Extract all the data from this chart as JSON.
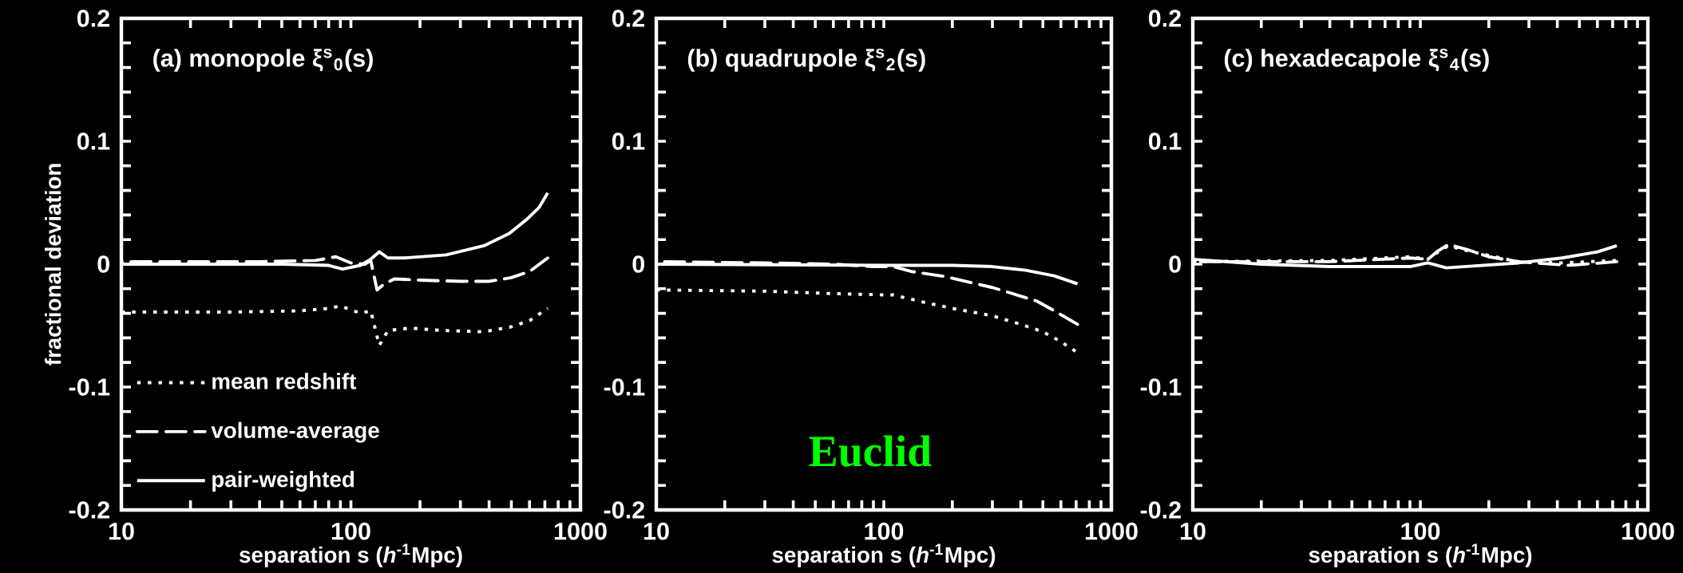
{
  "chart_data": [
    {
      "type": "line",
      "title": "(a) monopole ξ$^{s}$$_{0}$(s)",
      "xlabel": "separation s (*h*$^{-1}$Mpc)",
      "ylabel": "fractional deviation",
      "log": "x",
      "xlim": [
        10,
        1000
      ],
      "ylim": [
        -0.2,
        0.2
      ],
      "xticks": [
        10,
        100,
        1000
      ],
      "yticks": [
        -0.2,
        -0.1,
        0,
        0.1,
        0.2
      ],
      "legend": "bottom left",
      "series": [
        {
          "name": "mean redshift",
          "color": "#ffffff",
          "line_style": "dotted",
          "x": [
            10,
            30,
            60,
            80,
            90,
            110,
            122,
            133,
            145,
            180,
            250,
            380,
            500,
            600,
            720
          ],
          "values": [
            -0.039,
            -0.039,
            -0.038,
            -0.036,
            -0.034,
            -0.04,
            -0.038,
            -0.066,
            -0.054,
            -0.052,
            -0.054,
            -0.055,
            -0.051,
            -0.046,
            -0.036
          ]
        },
        {
          "name": "volume-average",
          "color": "#ffffff",
          "line_style": "dashed",
          "x": [
            10,
            40,
            70,
            86,
            100,
            115,
            122,
            130,
            140,
            155,
            200,
            300,
            400,
            500,
            600,
            720
          ],
          "values": [
            0.002,
            0.002,
            0.003,
            0.006,
            0.001,
            0.0,
            0.003,
            -0.021,
            -0.016,
            -0.012,
            -0.013,
            -0.014,
            -0.014,
            -0.011,
            -0.006,
            0.005
          ]
        },
        {
          "name": "pair-weighted",
          "color": "#ffffff",
          "line_style": "solid",
          "x": [
            10,
            50,
            80,
            92,
            110,
            122,
            133,
            145,
            170,
            260,
            380,
            490,
            580,
            660,
            720
          ],
          "values": [
            0.0,
            0.0,
            -0.001,
            -0.004,
            -0.001,
            0.004,
            0.01,
            0.005,
            0.005,
            0.0075,
            0.015,
            0.025,
            0.036,
            0.046,
            0.058
          ]
        }
      ]
    },
    {
      "type": "line",
      "title": "(b) quadrupole ξ$^{s}$$_{2}$(s)",
      "xlabel": "separation s (*h*$^{-1}$Mpc)",
      "log": "x",
      "xlim": [
        10,
        1000
      ],
      "ylim": [
        -0.2,
        0.2
      ],
      "xticks": [
        10,
        100,
        1000
      ],
      "yticks": [
        -0.2,
        -0.1,
        0,
        0.1,
        0.2
      ],
      "annotations": [
        "Euclid"
      ],
      "series": [
        {
          "color": "#ffffff",
          "line_style": "dotted",
          "x": [
            10,
            30,
            60,
            100,
            110,
            150,
            200,
            300,
            400,
            500,
            600,
            710
          ],
          "values": [
            -0.021,
            -0.022,
            -0.024,
            -0.025,
            -0.025,
            -0.031,
            -0.036,
            -0.042,
            -0.049,
            -0.055,
            -0.063,
            -0.072
          ]
        },
        {
          "color": "#ffffff",
          "line_style": "dashed",
          "x": [
            10,
            30,
            60,
            90,
            110,
            132,
            185,
            300,
            470,
            550,
            710
          ],
          "values": [
            0.002,
            0.001,
            0.0,
            -0.002,
            -0.002,
            -0.006,
            -0.01,
            -0.019,
            -0.03,
            -0.037,
            -0.049
          ]
        },
        {
          "color": "#ffffff",
          "line_style": "solid",
          "x": [
            10,
            100,
            200,
            300,
            420,
            560,
            710
          ],
          "values": [
            0.0,
            -0.001,
            -0.001,
            -0.002,
            -0.005,
            -0.0095,
            -0.016
          ]
        }
      ]
    },
    {
      "type": "line",
      "title": "(c) hexadecapole ξ$^{s}$$_{4}$(s)",
      "xlabel": "separation s (*h*$^{-1}$Mpc)",
      "log": "x",
      "xlim": [
        10,
        1000
      ],
      "ylim": [
        -0.2,
        0.2
      ],
      "xticks": [
        10,
        100,
        1000
      ],
      "yticks": [
        -0.2,
        -0.1,
        0,
        0.1,
        0.2
      ],
      "series": [
        {
          "color": "#ffffff",
          "line_style": "dotted",
          "x": [
            10,
            40,
            90,
            108,
            120,
            133,
            160,
            200,
            270,
            420,
            730
          ],
          "values": [
            0.002,
            0.003,
            0.006,
            0.004,
            0.01,
            0.015,
            0.011,
            0.007,
            0.002,
            0.001,
            0.003
          ]
        },
        {
          "color": "#ffffff",
          "line_style": "dashed",
          "x": [
            10,
            40,
            90,
            108,
            120,
            133,
            160,
            200,
            270,
            450,
            730
          ],
          "values": [
            0.002,
            0.002,
            0.005,
            0.004,
            0.011,
            0.016,
            0.012,
            0.006,
            0.002,
            -0.001,
            0.002
          ]
        },
        {
          "color": "#ffffff",
          "line_style": "solid",
          "x": [
            10,
            20,
            40,
            90,
            108,
            130,
            270,
            420,
            600,
            730
          ],
          "values": [
            0.004,
            0.0,
            -0.002,
            -0.002,
            0.001,
            -0.003,
            0.001,
            0.005,
            0.01,
            0.015
          ]
        }
      ]
    }
  ]
}
